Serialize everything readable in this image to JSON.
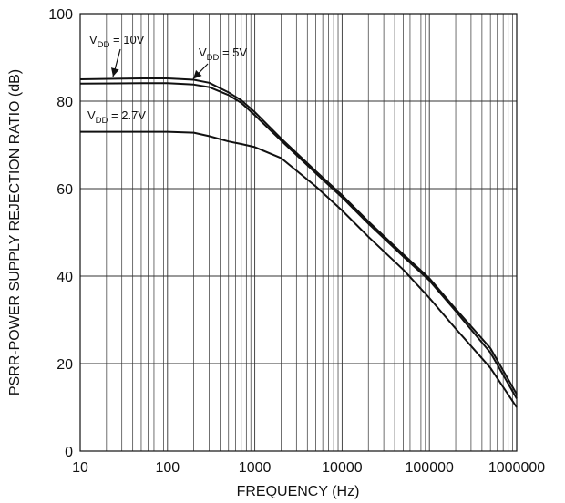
{
  "chart_data": {
    "type": "line",
    "title": "",
    "xlabel": "FREQUENCY (Hz)",
    "ylabel": "PSRR-POWER SUPPLY REJECTION RATIO (dB)",
    "xscale": "log",
    "xlim": [
      10,
      1000000
    ],
    "ylim": [
      0,
      100
    ],
    "grid": true,
    "legend": "none",
    "x_tick_labels": [
      "10",
      "100",
      "1000",
      "10000",
      "100000",
      "1000000"
    ],
    "y_tick_labels": [
      "0",
      "20",
      "40",
      "60",
      "80",
      "100"
    ],
    "annotations": [
      {
        "main": "V",
        "sub": "DD",
        "rest": " = 10V",
        "series": "10V"
      },
      {
        "main": "V",
        "sub": "DD",
        "rest": " = 5V",
        "series": "5V"
      },
      {
        "main": "V",
        "sub": "DD",
        "rest": " = 2.7V",
        "series": "2.7V"
      }
    ],
    "series": [
      {
        "key": "10V",
        "color": "#111111",
        "x": [
          10,
          50,
          100,
          200,
          300,
          500,
          700,
          1000,
          2000,
          5000,
          10000,
          20000,
          50000,
          100000,
          200000,
          500000,
          1000000
        ],
        "y": [
          85,
          85.2,
          85.2,
          84.9,
          84.2,
          82,
          80.2,
          77.5,
          71.5,
          64,
          58.5,
          52.5,
          45,
          39.5,
          32.5,
          23.5,
          13
        ]
      },
      {
        "key": "5V",
        "color": "#111111",
        "x": [
          10,
          50,
          100,
          200,
          300,
          500,
          700,
          1000,
          2000,
          5000,
          10000,
          20000,
          50000,
          100000,
          200000,
          500000,
          1000000
        ],
        "y": [
          84,
          84.1,
          84.1,
          83.8,
          83.2,
          81.4,
          79.6,
          76.8,
          71,
          63.5,
          58,
          52,
          44.5,
          39,
          32,
          22.5,
          12
        ]
      },
      {
        "key": "2.7V",
        "color": "#111111",
        "x": [
          10,
          50,
          100,
          200,
          300,
          500,
          700,
          1000,
          2000,
          5000,
          10000,
          20000,
          50000,
          100000,
          200000,
          500000,
          1000000
        ],
        "y": [
          73,
          73,
          73,
          72.8,
          72,
          70.8,
          70.2,
          69.5,
          67,
          60.5,
          55,
          49,
          41.5,
          35,
          28,
          19,
          10
        ]
      }
    ]
  }
}
